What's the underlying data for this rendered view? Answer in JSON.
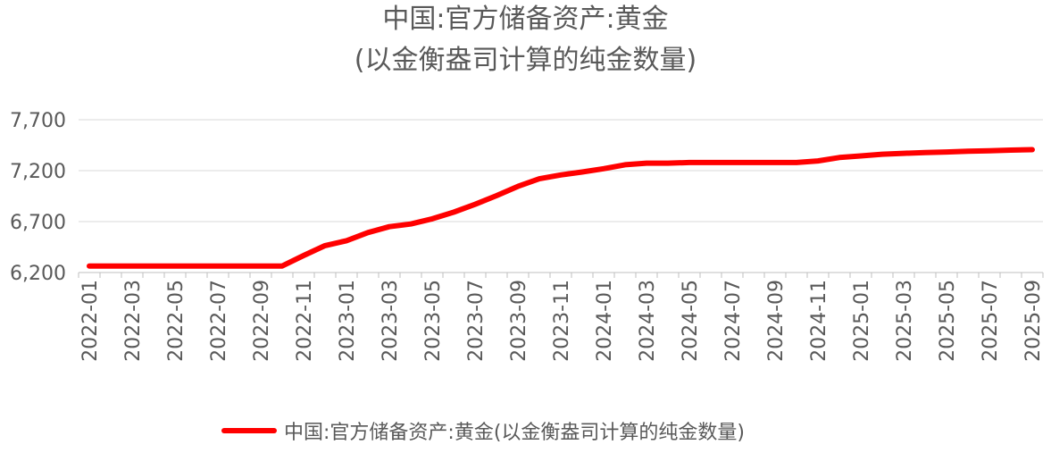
{
  "chart_data": {
    "type": "line",
    "title": "中国:官方储备资产:黄金",
    "subtitle": "(以金衡盎司计算的纯金数量)",
    "xlabel": "",
    "ylabel": "",
    "ylim": [
      6200,
      7700
    ],
    "yticks": [
      "6,200",
      "6,700",
      "7,200",
      "7,700"
    ],
    "ytick_values": [
      6200,
      6700,
      7200,
      7700
    ],
    "grid": true,
    "legend_position": "bottom",
    "x_tick_labels": [
      "2022-01",
      "2022-03",
      "2022-05",
      "2022-07",
      "2022-09",
      "2022-11",
      "2023-01",
      "2023-03",
      "2023-05",
      "2023-07",
      "2023-09",
      "2023-11",
      "2024-01",
      "2024-03",
      "2024-05",
      "2024-07",
      "2024-09",
      "2024-11",
      "2025-01",
      "2025-03",
      "2025-05",
      "2025-07",
      "2025-09"
    ],
    "categories": [
      "2022-01",
      "2022-02",
      "2022-03",
      "2022-04",
      "2022-05",
      "2022-06",
      "2022-07",
      "2022-08",
      "2022-09",
      "2022-10",
      "2022-11",
      "2022-12",
      "2023-01",
      "2023-02",
      "2023-03",
      "2023-04",
      "2023-05",
      "2023-06",
      "2023-07",
      "2023-08",
      "2023-09",
      "2023-10",
      "2023-11",
      "2023-12",
      "2024-01",
      "2024-02",
      "2024-03",
      "2024-04",
      "2024-05",
      "2024-06",
      "2024-07",
      "2024-08",
      "2024-09",
      "2024-10",
      "2024-11",
      "2024-12",
      "2025-01",
      "2025-02",
      "2025-03",
      "2025-04",
      "2025-05",
      "2025-06",
      "2025-07",
      "2025-08",
      "2025-09"
    ],
    "series": [
      {
        "name": "中国:官方储备资产:黄金(以金衡盎司计算的纯金数量)",
        "color": "#ff0000",
        "values": [
          6264,
          6264,
          6264,
          6264,
          6264,
          6264,
          6264,
          6264,
          6264,
          6264,
          6367,
          6464,
          6512,
          6592,
          6650,
          6676,
          6727,
          6792,
          6869,
          6954,
          7046,
          7120,
          7158,
          7187,
          7219,
          7258,
          7274,
          7274,
          7280,
          7280,
          7280,
          7280,
          7280,
          7280,
          7296,
          7329,
          7345,
          7361,
          7370,
          7377,
          7383,
          7390,
          7396,
          7402,
          7406
        ]
      }
    ]
  }
}
